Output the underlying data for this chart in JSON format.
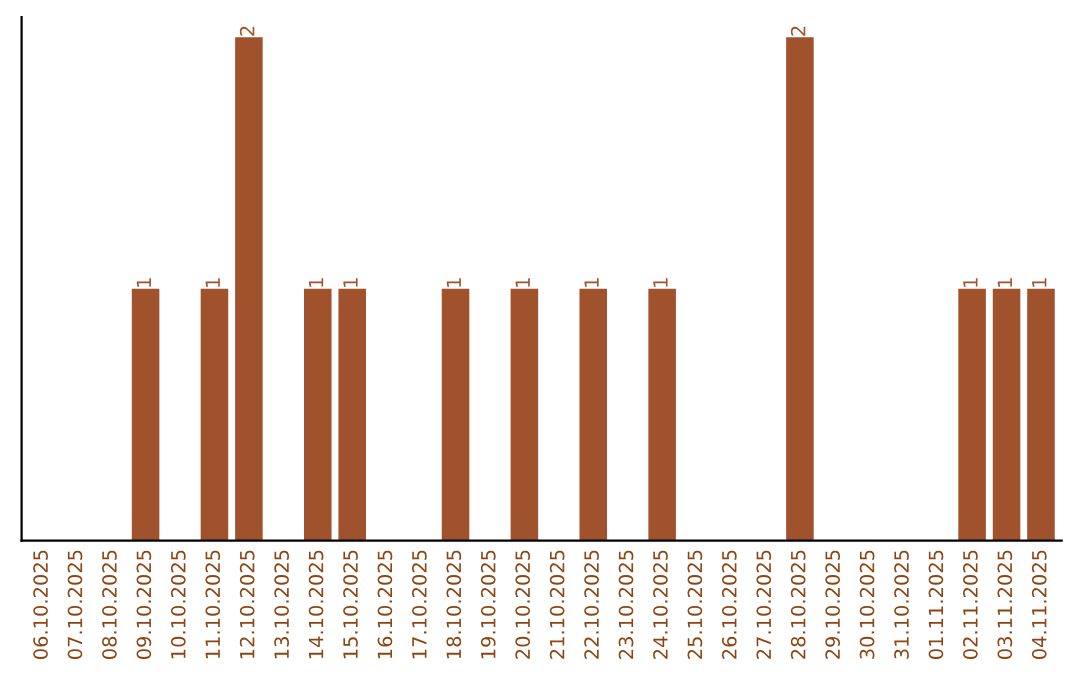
{
  "chart_data": {
    "type": "bar",
    "categories": [
      "06.10.2025",
      "07.10.2025",
      "08.10.2025",
      "09.10.2025",
      "10.10.2025",
      "11.10.2025",
      "12.10.2025",
      "13.10.2025",
      "14.10.2025",
      "15.10.2025",
      "16.10.2025",
      "17.10.2025",
      "18.10.2025",
      "19.10.2025",
      "20.10.2025",
      "21.10.2025",
      "22.10.2025",
      "23.10.2025",
      "24.10.2025",
      "25.10.2025",
      "26.10.2025",
      "27.10.2025",
      "28.10.2025",
      "29.10.2025",
      "30.10.2025",
      "31.10.2025",
      "01.11.2025",
      "02.11.2025",
      "03.11.2025",
      "04.11.2025"
    ],
    "values": [
      0,
      0,
      0,
      1,
      0,
      1,
      2,
      0,
      1,
      1,
      0,
      0,
      1,
      0,
      1,
      0,
      1,
      0,
      1,
      0,
      0,
      0,
      2,
      0,
      0,
      0,
      0,
      1,
      1,
      1
    ],
    "value_labels": [
      null,
      null,
      null,
      "1",
      null,
      "1",
      "2",
      null,
      "1",
      "1",
      null,
      null,
      "1",
      null,
      "1",
      null,
      "1",
      null,
      "1",
      null,
      null,
      null,
      "2",
      null,
      null,
      null,
      null,
      "1",
      "1",
      "1"
    ],
    "color": "#a0522d",
    "tick_labels": "x",
    "grid": false
  }
}
